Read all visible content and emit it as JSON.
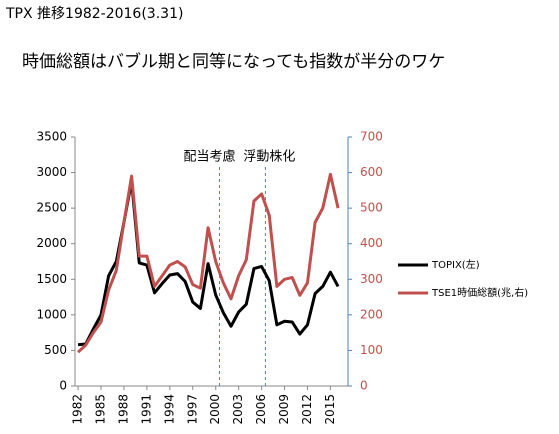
{
  "chart_data": {
    "type": "line",
    "title": "TPX 推移1982-2016(3.31)",
    "subtitle": "時価総額はバブル期と同等になっても指数が半分のワケ",
    "x": [
      1982,
      1983,
      1984,
      1985,
      1986,
      1987,
      1988,
      1989,
      1990,
      1991,
      1992,
      1993,
      1994,
      1995,
      1996,
      1997,
      1998,
      1999,
      2000,
      2001,
      2002,
      2003,
      2004,
      2005,
      2006,
      2007,
      2008,
      2009,
      2010,
      2011,
      2012,
      2013,
      2014,
      2015,
      2016
    ],
    "xlim": [
      1981.6,
      2017.3
    ],
    "xticks": [
      1982,
      1985,
      1988,
      1991,
      1994,
      1997,
      2000,
      2003,
      2006,
      2009,
      2012,
      2015
    ],
    "ylim": [
      0,
      3500
    ],
    "yticks": [
      0,
      500,
      1000,
      1500,
      2000,
      2500,
      3000,
      3500
    ],
    "y2lim": [
      0,
      700
    ],
    "y2ticks": [
      0,
      100,
      200,
      300,
      400,
      500,
      600,
      700
    ],
    "series": [
      {
        "name": "TOPIX(左)",
        "color": "#000000",
        "values": [
          580,
          590,
          800,
          1000,
          1550,
          1750,
          2300,
          2880,
          1730,
          1700,
          1310,
          1440,
          1560,
          1580,
          1470,
          1180,
          1090,
          1720,
          1280,
          1030,
          840,
          1040,
          1150,
          1650,
          1680,
          1480,
          860,
          910,
          900,
          730,
          860,
          1300,
          1400,
          1600,
          1400
        ]
      },
      {
        "name": "TSE1時価総額(兆,右)",
        "color": "#c0504d",
        "axis": "y2",
        "values": [
          95,
          115,
          150,
          180,
          270,
          325,
          460,
          590,
          365,
          365,
          280,
          310,
          340,
          350,
          335,
          285,
          275,
          445,
          350,
          290,
          245,
          310,
          355,
          520,
          540,
          480,
          280,
          300,
          305,
          255,
          290,
          460,
          500,
          595,
          500
        ]
      }
    ],
    "annotations": [
      {
        "text": "配当考慮",
        "x": 2000.5
      },
      {
        "text": "浮動株化",
        "x": 2006.5
      }
    ]
  }
}
